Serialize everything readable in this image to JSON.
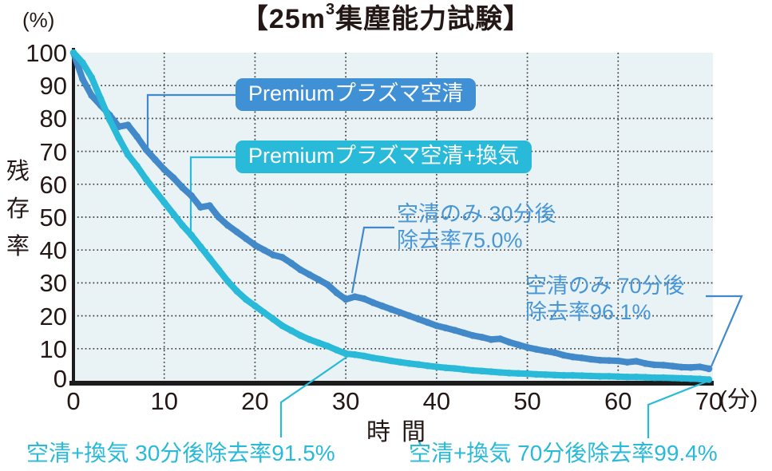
{
  "title": {
    "prefix": "【25m",
    "superscript": "3",
    "suffix": "集塵能力試験】"
  },
  "axes": {
    "y_unit": "(%)",
    "y_label": "残存率",
    "y_ticks": [
      100,
      90,
      80,
      70,
      60,
      50,
      40,
      30,
      20,
      10,
      0
    ],
    "x_ticks": [
      0,
      10,
      20,
      30,
      40,
      50,
      60,
      70
    ],
    "x_unit": "(分)",
    "x_label": "時間"
  },
  "legend": [
    {
      "label": "Premiumプラズマ空清",
      "color": "#3f90d4"
    },
    {
      "label": "Premiumプラズマ空清+換気",
      "color": "#29b9d9"
    }
  ],
  "annotations": {
    "blue_30": {
      "line1": "空清のみ 30分後",
      "line2": "除去率75.0%",
      "color": "#4896d6"
    },
    "blue_70": {
      "line1": "空清のみ 70分後",
      "line2": "除去率96.1%",
      "color": "#4896d6"
    },
    "cyan_30": {
      "text": "空清+換気 30分後除去率91.5%",
      "color": "#29b9d9"
    },
    "cyan_70": {
      "text": "空清+換気 70分後除去率99.4%",
      "color": "#29b9d9"
    }
  },
  "colors": {
    "plot_bg": "#e9f2f5",
    "grid": "#3c3c3c",
    "axis": "#1c1c1c",
    "series_blue": "#4289ca",
    "series_cyan": "#29b9d9",
    "text_dark": "#231815"
  },
  "chart_data": {
    "type": "line",
    "title": "25m3 集塵能力試験",
    "xlabel": "時間 (分)",
    "ylabel": "残存率 (%)",
    "xlim": [
      0,
      70
    ],
    "ylim": [
      0,
      100
    ],
    "grid": "dotted",
    "x_step_minutes": 1,
    "series": [
      {
        "name": "Premiumプラズマ空清",
        "color": "#4289ca",
        "values": [
          100,
          92,
          87,
          84,
          81,
          77.5,
          78,
          74.5,
          70.5,
          67.5,
          64.5,
          62,
          59,
          56.5,
          53,
          53.5,
          50,
          47.5,
          45.5,
          43.5,
          41.5,
          40,
          38.5,
          37.8,
          36,
          34,
          32.5,
          31,
          29.5,
          27,
          25,
          25.8,
          25.2,
          24,
          23,
          22,
          21,
          20,
          19,
          18,
          17,
          16.3,
          15.6,
          14.8,
          14,
          13.5,
          12.8,
          13,
          12,
          11.2,
          10.4,
          9.8,
          9.3,
          8.8,
          8,
          7.5,
          7.2,
          6.8,
          6.5,
          6.4,
          6.3,
          5.9,
          6.2,
          5.5,
          5.1,
          5,
          4.7,
          4.4,
          4.3,
          4.5,
          3.9
        ]
      },
      {
        "name": "Premiumプラズマ空清+換気",
        "color": "#29b9d9",
        "values": [
          100,
          97,
          92.5,
          86,
          79.5,
          74,
          69,
          65.5,
          61.5,
          58,
          54.5,
          51,
          47.5,
          44.5,
          41,
          37.5,
          34,
          30.5,
          27.5,
          25,
          23,
          21,
          19,
          17,
          15.5,
          14,
          12.8,
          11.8,
          10.8,
          9.6,
          8.5,
          8.2,
          7.8,
          7.2,
          6.8,
          6.3,
          5.9,
          5.5,
          5.2,
          4.8,
          4.5,
          4.2,
          4,
          3.7,
          3.4,
          3.2,
          3,
          2.8,
          2.6,
          2.5,
          2.4,
          2.2,
          2.1,
          2,
          1.9,
          1.9,
          1.8,
          1.7,
          1.6,
          1.6,
          1.5,
          1.4,
          1.4,
          1.3,
          1.2,
          1.2,
          1.1,
          1,
          0.9,
          0.8,
          0.6
        ]
      }
    ],
    "key_points": {
      "kuusei_only_30min_remaining_pct": 25.0,
      "kuusei_only_30min_removal_pct": 75.0,
      "kuusei_only_70min_remaining_pct": 3.9,
      "kuusei_only_70min_removal_pct": 96.1,
      "kuusei_kanki_30min_remaining_pct": 8.5,
      "kuusei_kanki_30min_removal_pct": 91.5,
      "kuusei_kanki_70min_remaining_pct": 0.6,
      "kuusei_kanki_70min_removal_pct": 99.4
    }
  }
}
